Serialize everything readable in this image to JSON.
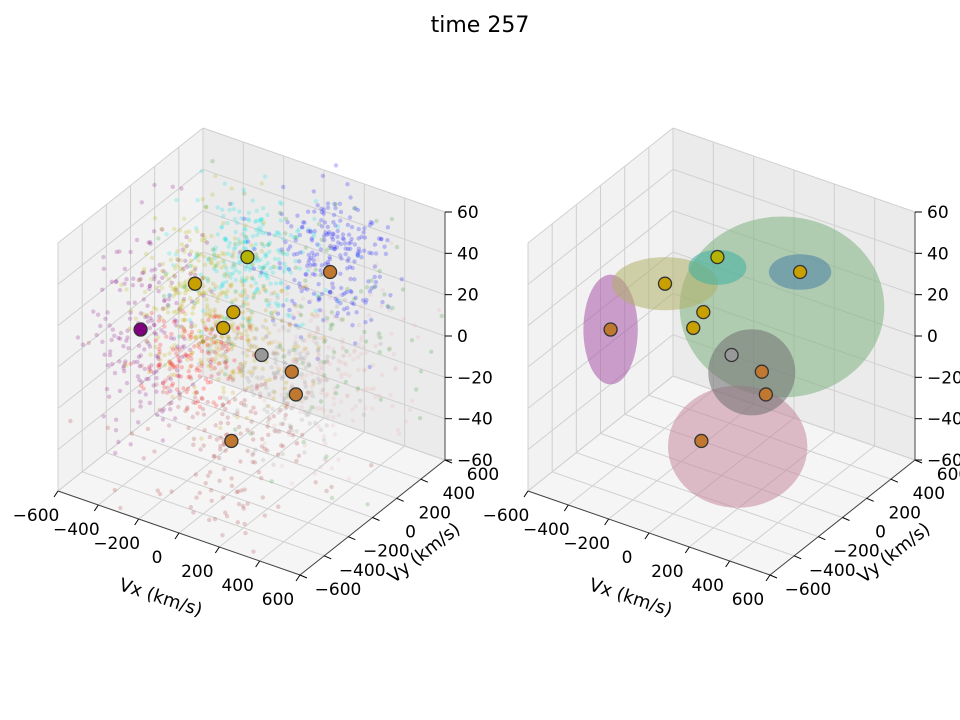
{
  "title": "time 257",
  "chart_data": [
    {
      "type": "scatter",
      "panel": "left",
      "xlabel": "Vx (km/s)",
      "ylabel": "Vy (km/s)",
      "zlabel": "",
      "xlim": [
        -600,
        600
      ],
      "ylim": [
        -600,
        600
      ],
      "zlim": [
        -600,
        600
      ],
      "xticks": [
        "−600",
        "−400",
        "−200",
        "0",
        "200",
        "400",
        "600"
      ],
      "yticks": [
        "−600",
        "−400",
        "−200",
        "0",
        "200",
        "400",
        "600"
      ],
      "zticks": [
        "−60",
        "−40",
        "−20",
        "0",
        "20",
        "40",
        "60"
      ],
      "grid": true,
      "clusters": [
        {
          "color": "#800080",
          "center": [
            -550,
            0,
            -80
          ],
          "spread": [
            120,
            200,
            250
          ],
          "count": 260
        },
        {
          "color": "#00e5e5",
          "center": [
            -200,
            300,
            250
          ],
          "spread": [
            140,
            160,
            120
          ],
          "count": 240
        },
        {
          "color": "#0000ff",
          "center": [
            150,
            450,
            300
          ],
          "spread": [
            140,
            160,
            140
          ],
          "count": 260
        },
        {
          "color": "#b5b500",
          "center": [
            -420,
            200,
            100
          ],
          "spread": [
            140,
            150,
            160
          ],
          "count": 200
        },
        {
          "color": "#c8a000",
          "center": [
            -150,
            100,
            0
          ],
          "spread": [
            150,
            150,
            150
          ],
          "count": 220
        },
        {
          "color": "#ff0000",
          "center": [
            -250,
            -50,
            -100
          ],
          "spread": [
            110,
            120,
            110
          ],
          "count": 120
        },
        {
          "color": "#aa3333",
          "center": [
            50,
            -250,
            -300
          ],
          "spread": [
            220,
            200,
            200
          ],
          "count": 180
        },
        {
          "color": "#e8b0b0",
          "center": [
            300,
            150,
            -50
          ],
          "spread": [
            160,
            200,
            180
          ],
          "count": 220
        },
        {
          "color": "#999999",
          "center": [
            150,
            0,
            -80
          ],
          "spread": [
            150,
            150,
            150
          ],
          "count": 160
        },
        {
          "color": "#2a9a2a",
          "center": [
            200,
            250,
            200
          ],
          "spread": [
            300,
            300,
            300
          ],
          "count": 150
        }
      ],
      "centers": [
        {
          "color": "#800080",
          "x": -550,
          "y": 0,
          "z": -80
        },
        {
          "color": "#c8a000",
          "x": -400,
          "y": 200,
          "z": 100
        },
        {
          "color": "#b5b500",
          "x": -200,
          "y": 300,
          "z": 250
        },
        {
          "color": "#c8a000",
          "x": -200,
          "y": 100,
          "z": 0
        },
        {
          "color": "#c8a000",
          "x": -180,
          "y": 150,
          "z": 60
        },
        {
          "color": "#999999",
          "x": 50,
          "y": 0,
          "z": 0
        },
        {
          "color": "#c07830",
          "x": 150,
          "y": 400,
          "z": 250
        },
        {
          "color": "#c07830",
          "x": 200,
          "y": 0,
          "z": -30
        },
        {
          "color": "#c07830",
          "x": 250,
          "y": -50,
          "z": -100
        },
        {
          "color": "#c07830",
          "x": 50,
          "y": -250,
          "z": -300
        }
      ]
    },
    {
      "type": "ellipsoid",
      "panel": "right",
      "xlabel": "Vx (km/s)",
      "ylabel": "Vy (km/s)",
      "zlabel": "",
      "xlim": [
        -600,
        600
      ],
      "ylim": [
        -600,
        600
      ],
      "zlim": [
        -600,
        600
      ],
      "xticks": [
        "−600",
        "−400",
        "−200",
        "0",
        "200",
        "400",
        "600"
      ],
      "yticks": [
        "−600",
        "−400",
        "−200",
        "0",
        "200",
        "400",
        "600"
      ],
      "zticks": [
        "−60",
        "−40",
        "−20",
        "0",
        "20",
        "40",
        "60"
      ],
      "grid": true,
      "ellipsoids": [
        {
          "color": "#7fb27f",
          "center": [
            150,
            250,
            150
          ],
          "radii": [
            480,
            420,
            420
          ]
        },
        {
          "color": "#c4899e",
          "center": [
            200,
            -200,
            -300
          ],
          "radii": [
            320,
            320,
            280
          ]
        },
        {
          "color": "#a855a8",
          "center": [
            -550,
            0,
            -80
          ],
          "radii": [
            110,
            200,
            260
          ]
        },
        {
          "color": "#b0b06a",
          "center": [
            -400,
            200,
            100
          ],
          "radii": [
            260,
            160,
            120
          ]
        },
        {
          "color": "#40b0a0",
          "center": [
            -200,
            300,
            200
          ],
          "radii": [
            140,
            100,
            80
          ]
        },
        {
          "color": "#4a7fa5",
          "center": [
            150,
            400,
            250
          ],
          "radii": [
            150,
            110,
            80
          ]
        },
        {
          "color": "#707070",
          "center": [
            150,
            0,
            -50
          ],
          "radii": [
            200,
            200,
            200
          ]
        }
      ],
      "centers": [
        {
          "color": "#c07830",
          "x": -550,
          "y": 0,
          "z": -80
        },
        {
          "color": "#c8a000",
          "x": -400,
          "y": 200,
          "z": 100
        },
        {
          "color": "#b5b500",
          "x": -200,
          "y": 300,
          "z": 250
        },
        {
          "color": "#c8a000",
          "x": -200,
          "y": 100,
          "z": 0
        },
        {
          "color": "#c8a000",
          "x": -180,
          "y": 150,
          "z": 60
        },
        {
          "color": "#999999",
          "x": 50,
          "y": 0,
          "z": 0
        },
        {
          "color": "#c8a000",
          "x": 150,
          "y": 400,
          "z": 250
        },
        {
          "color": "#c07830",
          "x": 200,
          "y": 0,
          "z": -30
        },
        {
          "color": "#c07830",
          "x": 250,
          "y": -50,
          "z": -100
        },
        {
          "color": "#c07830",
          "x": 50,
          "y": -250,
          "z": -300
        }
      ]
    }
  ]
}
